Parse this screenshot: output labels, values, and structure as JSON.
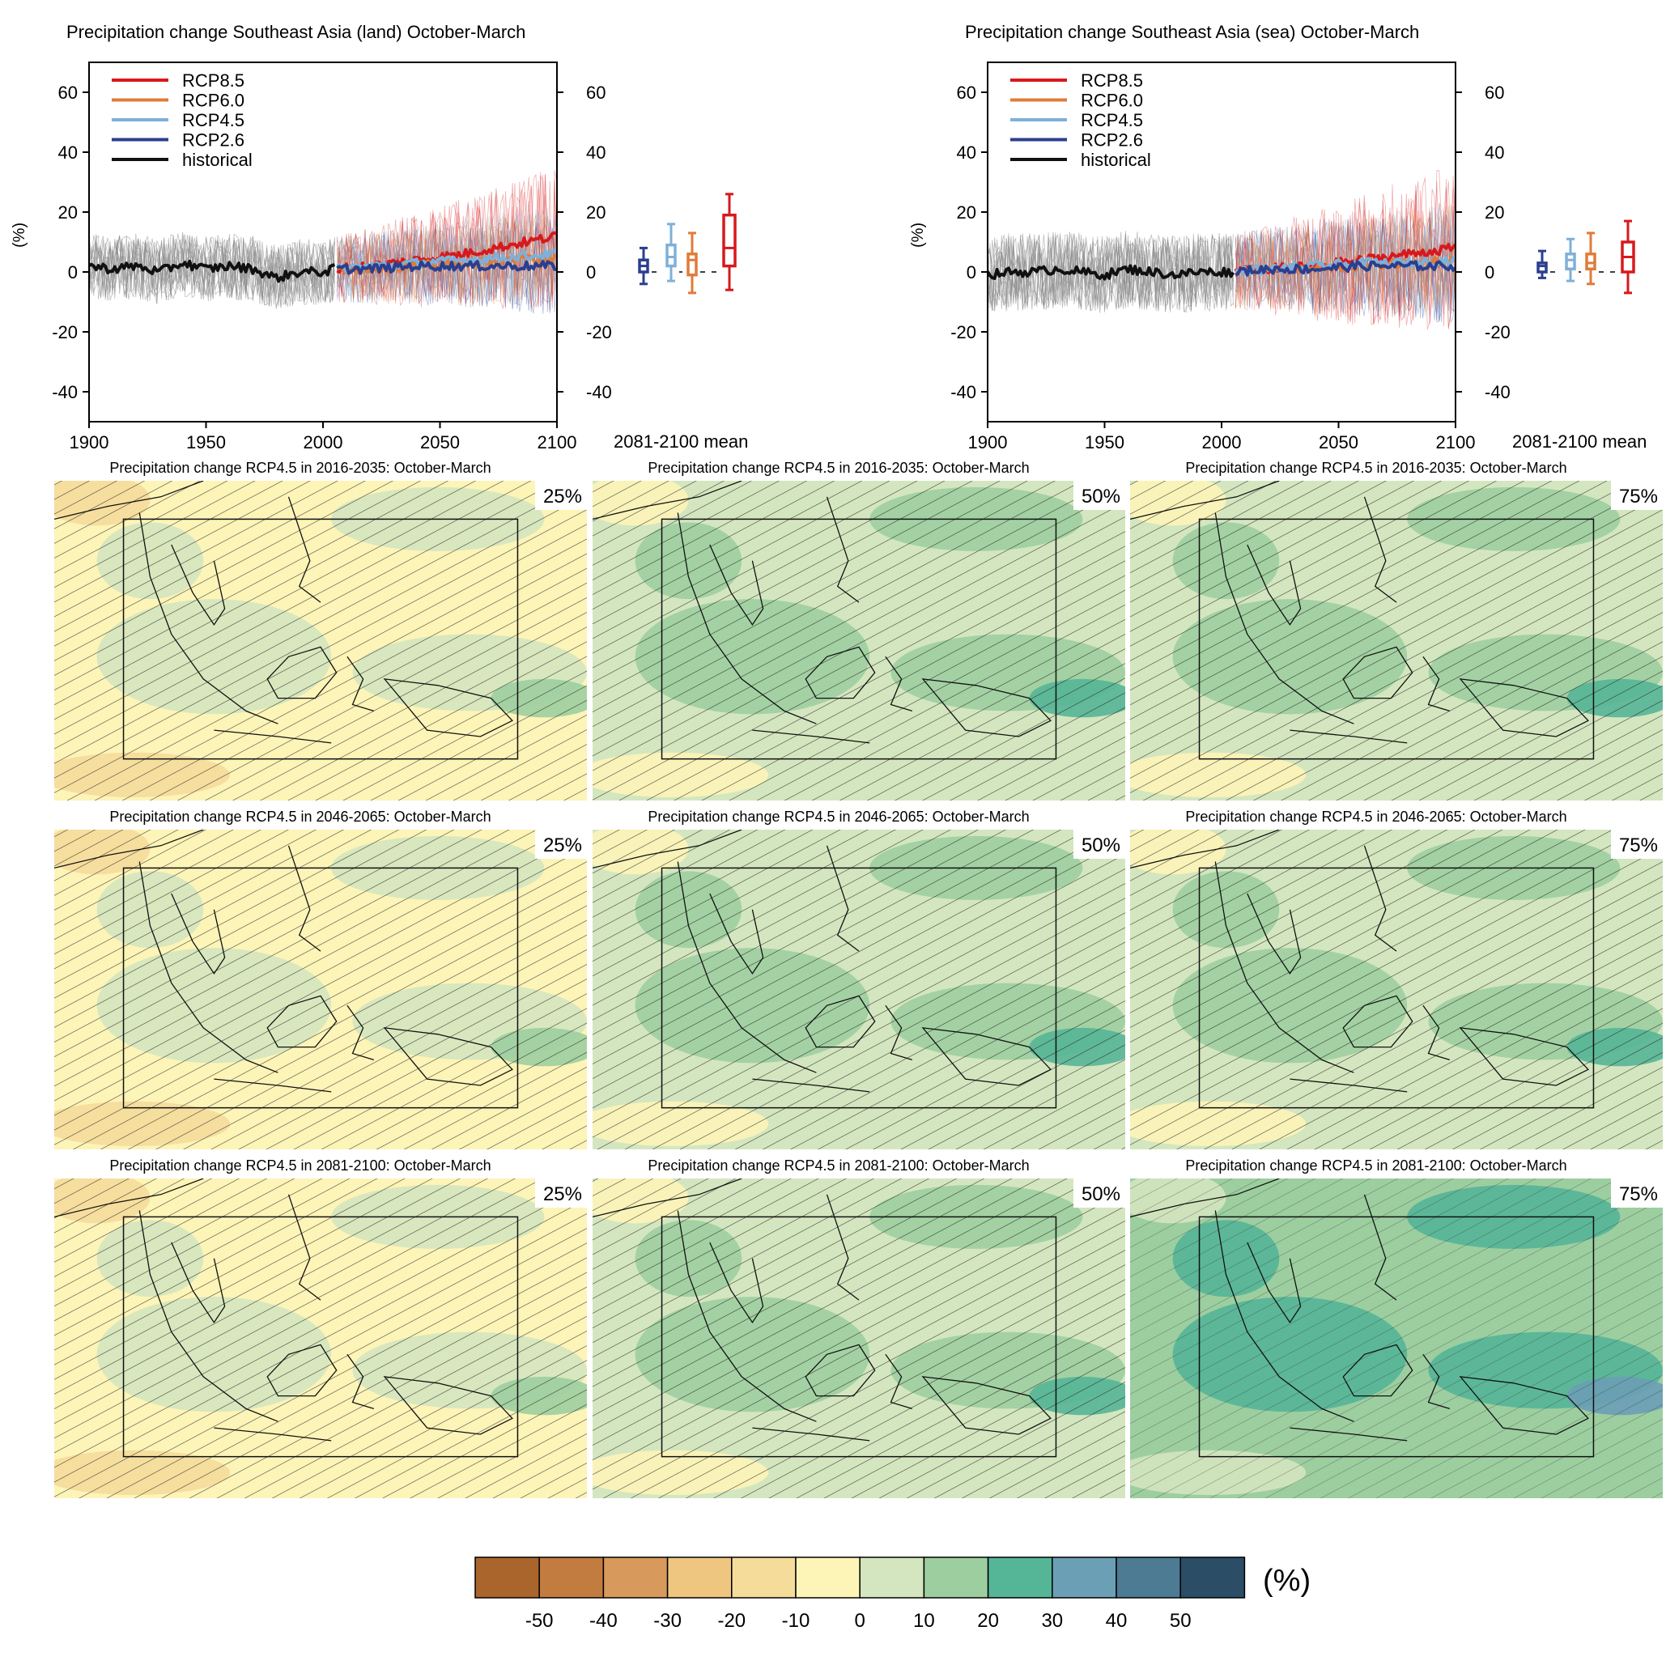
{
  "chart_data": [
    {
      "type": "line",
      "title": "Precipitation change Southeast Asia (land) October-March",
      "ylabel": "(%)",
      "xlim": [
        1900,
        2100
      ],
      "ylim": [
        -50,
        70
      ],
      "x_ticks": [
        1900,
        1950,
        2000,
        2050,
        2100
      ],
      "y_ticks": [
        -40,
        -20,
        0,
        20,
        40,
        60
      ],
      "legend": {
        "placement": "top-left",
        "entries": [
          "RCP8.5",
          "RCP6.0",
          "RCP4.5",
          "RCP2.6",
          "historical"
        ]
      },
      "series": [
        {
          "name": "historical",
          "color": "#111111",
          "x": [
            1900,
            1910,
            1920,
            1930,
            1940,
            1950,
            1960,
            1970,
            1980,
            1990,
            2000,
            2005
          ],
          "y": [
            2,
            1,
            2,
            0,
            3,
            1,
            2,
            1,
            -2,
            0,
            0,
            1
          ]
        },
        {
          "name": "RCP2.6",
          "color": "#2a3f8f",
          "x": [
            2006,
            2020,
            2040,
            2060,
            2080,
            2100
          ],
          "y": [
            1,
            1,
            2,
            2,
            2,
            2
          ]
        },
        {
          "name": "RCP4.5",
          "color": "#7fb0d8",
          "x": [
            2006,
            2020,
            2040,
            2060,
            2080,
            2100
          ],
          "y": [
            1,
            2,
            3,
            4,
            5,
            6
          ]
        },
        {
          "name": "RCP6.0",
          "color": "#e07b39",
          "x": [
            2006,
            2020,
            2040,
            2060,
            2080,
            2100
          ],
          "y": [
            1,
            1,
            2,
            3,
            4,
            5
          ]
        },
        {
          "name": "RCP8.5",
          "color": "#d7191c",
          "x": [
            2006,
            2020,
            2040,
            2060,
            2080,
            2100
          ],
          "y": [
            1,
            2,
            4,
            6,
            9,
            12
          ]
        }
      ],
      "boxplot": {
        "label": "2081-2100 mean",
        "boxes": [
          {
            "name": "RCP2.6",
            "color": "#2a3f8f",
            "min": -4,
            "q1": 0,
            "median": 2,
            "q3": 4,
            "max": 8
          },
          {
            "name": "RCP4.5",
            "color": "#7fb0d8",
            "min": -3,
            "q1": 2,
            "median": 5,
            "q3": 9,
            "max": 16
          },
          {
            "name": "RCP6.0",
            "color": "#e07b39",
            "min": -7,
            "q1": -1,
            "median": 4,
            "q3": 6,
            "max": 13
          },
          {
            "name": "RCP8.5",
            "color": "#d7191c",
            "min": -6,
            "q1": 2,
            "median": 8,
            "q3": 19,
            "max": 26
          }
        ]
      }
    },
    {
      "type": "line",
      "title": "Precipitation change Southeast Asia (sea) October-March",
      "ylabel": "(%)",
      "xlim": [
        1900,
        2100
      ],
      "ylim": [
        -50,
        70
      ],
      "x_ticks": [
        1900,
        1950,
        2000,
        2050,
        2100
      ],
      "y_ticks": [
        -40,
        -20,
        0,
        20,
        40,
        60
      ],
      "legend": {
        "placement": "top-left",
        "entries": [
          "RCP8.5",
          "RCP6.0",
          "RCP4.5",
          "RCP2.6",
          "historical"
        ]
      },
      "series": [
        {
          "name": "historical",
          "color": "#111111",
          "x": [
            1900,
            1910,
            1920,
            1930,
            1940,
            1950,
            1960,
            1970,
            1980,
            1990,
            2000,
            2005
          ],
          "y": [
            -1,
            0,
            0,
            1,
            0,
            -1,
            1,
            0,
            -1,
            0,
            0,
            0
          ]
        },
        {
          "name": "RCP2.6",
          "color": "#2a3f8f",
          "x": [
            2006,
            2020,
            2040,
            2060,
            2080,
            2100
          ],
          "y": [
            0,
            1,
            1,
            2,
            2,
            2
          ]
        },
        {
          "name": "RCP4.5",
          "color": "#7fb0d8",
          "x": [
            2006,
            2020,
            2040,
            2060,
            2080,
            2100
          ],
          "y": [
            0,
            1,
            2,
            3,
            3,
            4
          ]
        },
        {
          "name": "RCP6.0",
          "color": "#e07b39",
          "x": [
            2006,
            2020,
            2040,
            2060,
            2080,
            2100
          ],
          "y": [
            0,
            1,
            1,
            2,
            3,
            4
          ]
        },
        {
          "name": "RCP8.5",
          "color": "#d7191c",
          "x": [
            2006,
            2020,
            2040,
            2060,
            2080,
            2100
          ],
          "y": [
            0,
            1,
            2,
            4,
            6,
            8
          ]
        }
      ],
      "boxplot": {
        "label": "2081-2100 mean",
        "boxes": [
          {
            "name": "RCP2.6",
            "color": "#2a3f8f",
            "min": -2,
            "q1": 0,
            "median": 2,
            "q3": 3,
            "max": 7
          },
          {
            "name": "RCP4.5",
            "color": "#7fb0d8",
            "min": -3,
            "q1": 1,
            "median": 4,
            "q3": 6,
            "max": 11
          },
          {
            "name": "RCP6.0",
            "color": "#e07b39",
            "min": -4,
            "q1": 1,
            "median": 3,
            "q3": 6,
            "max": 13
          },
          {
            "name": "RCP8.5",
            "color": "#d7191c",
            "min": -7,
            "q1": 0,
            "median": 5,
            "q3": 10,
            "max": 17
          }
        ]
      }
    },
    {
      "type": "heatmap",
      "description_of_type": "map panels",
      "panels": [
        {
          "title": "Precipitation change RCP4.5 in 2016-2035: October-March",
          "percentile": "25%",
          "base_class": -10
        },
        {
          "title": "Precipitation change RCP4.5 in 2016-2035: October-March",
          "percentile": "50%",
          "base_class": 0
        },
        {
          "title": "Precipitation change RCP4.5 in 2016-2035: October-March",
          "percentile": "75%",
          "base_class": 0
        },
        {
          "title": "Precipitation change RCP4.5 in 2046-2065: October-March",
          "percentile": "25%",
          "base_class": -10
        },
        {
          "title": "Precipitation change RCP4.5 in 2046-2065: October-March",
          "percentile": "50%",
          "base_class": 0
        },
        {
          "title": "Precipitation change RCP4.5 in 2046-2065: October-March",
          "percentile": "75%",
          "base_class": 0
        },
        {
          "title": "Precipitation change RCP4.5 in 2081-2100: October-March",
          "percentile": "25%",
          "base_class": -10
        },
        {
          "title": "Precipitation change RCP4.5 in 2081-2100: October-March",
          "percentile": "50%",
          "base_class": 0
        },
        {
          "title": "Precipitation change RCP4.5 in 2081-2100: October-March",
          "percentile": "75%",
          "base_class": 10
        }
      ],
      "colorbar": {
        "unit": "(%)",
        "tick_labels": [
          "-50",
          "-40",
          "-30",
          "-20",
          "-10",
          "0",
          "10",
          "20",
          "30",
          "40",
          "50"
        ],
        "colors": [
          "#a9652b",
          "#c27c3f",
          "#d79a5c",
          "#eec67f",
          "#f5dc9b",
          "#fdf4b8",
          "#d4e6bf",
          "#9dcea0",
          "#55b597",
          "#6b9fb5",
          "#4c7b93",
          "#2b4d66"
        ]
      }
    }
  ]
}
